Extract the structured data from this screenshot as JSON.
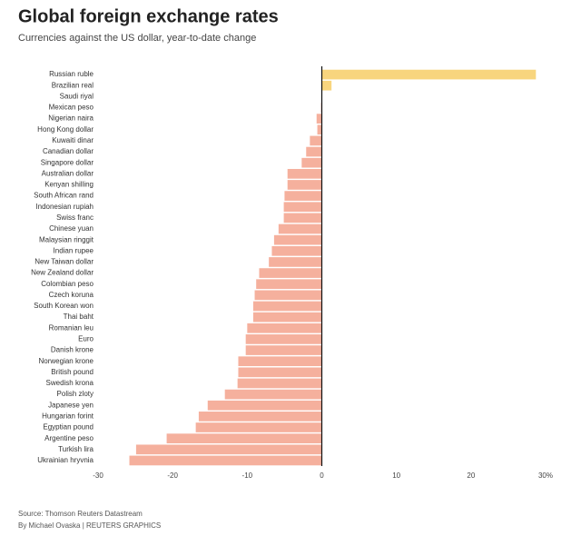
{
  "chart_data": {
    "type": "hbar",
    "title": "Global foreign exchange rates",
    "subtitle": "Currencies against the US dollar, year-to-date change",
    "categories": [
      "Russian ruble",
      "Brazilian real",
      "Saudi riyal",
      "Mexican peso",
      "Nigerian naira",
      "Hong Kong dollar",
      "Kuwaiti dinar",
      "Canadian dollar",
      "Singapore dollar",
      "Australian dollar",
      "Kenyan shilling",
      "South African rand",
      "Indonesian rupiah",
      "Swiss franc",
      "Chinese yuan",
      "Malaysian ringgit",
      "Indian rupee",
      "New Taiwan dollar",
      "New Zealand dollar",
      "Colombian peso",
      "Czech koruna",
      "South Korean won",
      "Thai baht",
      "Romanian leu",
      "Euro",
      "Danish krone",
      "Norwegian krone",
      "British pound",
      "Swedish krona",
      "Polish zloty",
      "Japanese yen",
      "Hungarian forint",
      "Egyptian pound",
      "Argentine peso",
      "Turkish lira",
      "Ukrainian hryvnia"
    ],
    "values": [
      28.7,
      1.3,
      0,
      -0.1,
      -0.7,
      -0.6,
      -1.6,
      -2.1,
      -2.7,
      -4.6,
      -4.6,
      -5.0,
      -5.1,
      -5.1,
      -5.8,
      -6.4,
      -6.7,
      -7.1,
      -8.4,
      -8.8,
      -9.0,
      -9.2,
      -9.2,
      -10.0,
      -10.2,
      -10.2,
      -11.2,
      -11.2,
      -11.3,
      -13.0,
      -15.3,
      -16.5,
      -16.9,
      -20.8,
      -24.9,
      -25.8
    ],
    "positive_color": "#f8d57e",
    "negative_color": "#f5b09d",
    "xlim": [
      -30,
      30
    ],
    "xticks": [
      -30,
      -20,
      -10,
      0,
      10,
      20,
      {
        "value": 30,
        "label": "30%"
      }
    ],
    "grid": false,
    "source": "Source: Thomson Reuters Datastream",
    "credit": "By Michael Ovaska | REUTERS GRAPHICS"
  }
}
